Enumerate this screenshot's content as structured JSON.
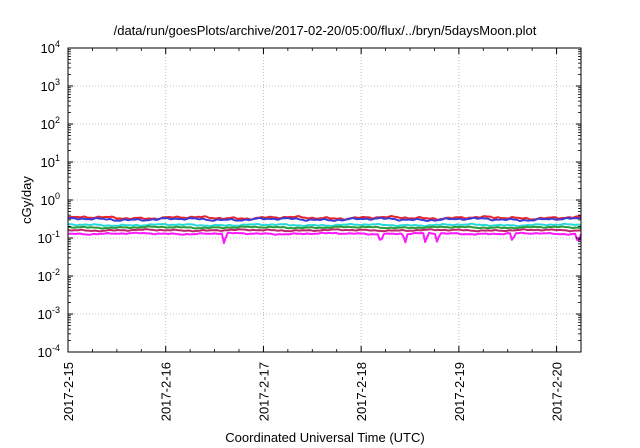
{
  "chart_data": {
    "type": "line",
    "title": "/data/run/goesPlots/archive/2017-02-20/05:00/flux/../bryn/5daysMoon.plot",
    "xlabel": "Coordinated Universal Time (UTC)",
    "ylabel": "cGy/day",
    "x_ticks": [
      "2017-2-15",
      "2017-2-16",
      "2017-2-17",
      "2017-2-18",
      "2017-2-19",
      "2017-2-20"
    ],
    "x_range_days": [
      0,
      5.25
    ],
    "ylim": [
      0.0001,
      10000
    ],
    "y_scale": "log",
    "y_ticks": [
      {
        "base": "10",
        "exp": "4"
      },
      {
        "base": "10",
        "exp": "3"
      },
      {
        "base": "10",
        "exp": "2"
      },
      {
        "base": "10",
        "exp": "1"
      },
      {
        "base": "10",
        "exp": "0"
      },
      {
        "base": "10",
        "exp": "-1"
      },
      {
        "base": "10",
        "exp": "-2"
      },
      {
        "base": "10",
        "exp": "-3"
      },
      {
        "base": "10",
        "exp": "-4"
      }
    ],
    "grid": true,
    "series": [
      {
        "color": "#e8242d",
        "mean": 0.34,
        "ripple": 0.1
      },
      {
        "color": "#3b3bd6",
        "mean": 0.31,
        "ripple": 0.1
      },
      {
        "color": "#27d8d8",
        "mean": 0.22,
        "ripple": 0.07
      },
      {
        "color": "#2f9a36",
        "mean": 0.19,
        "ripple": 0.06
      },
      {
        "color": "#c0246b",
        "mean": 0.16,
        "ripple": 0.06
      },
      {
        "color": "#ff18ff",
        "mean": 0.13,
        "ripple": 0.06,
        "dips": [
          {
            "x": 1.6,
            "y": 0.06
          },
          {
            "x": 3.2,
            "y": 0.065
          },
          {
            "x": 3.45,
            "y": 0.07
          },
          {
            "x": 3.66,
            "y": 0.065
          },
          {
            "x": 3.78,
            "y": 0.07
          },
          {
            "x": 4.55,
            "y": 0.075
          },
          {
            "x": 5.22,
            "y": 0.06
          }
        ]
      }
    ]
  }
}
